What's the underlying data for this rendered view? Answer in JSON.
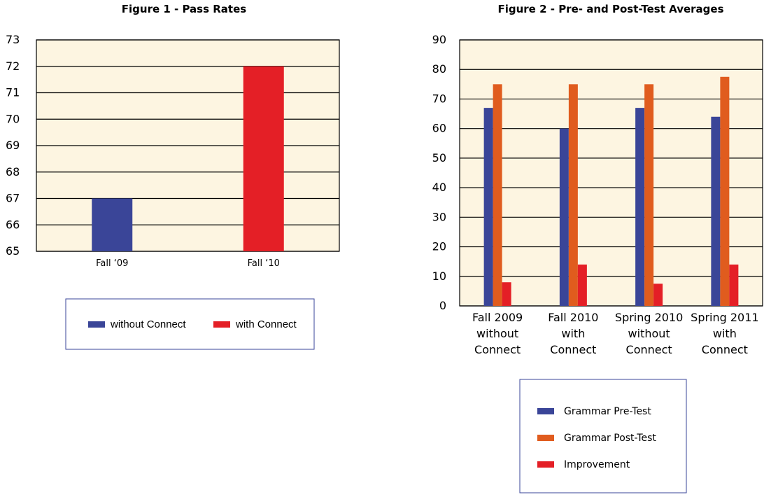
{
  "chart_data": [
    {
      "type": "bar",
      "title": "Figure 1 - Pass Rates",
      "xlabel": "",
      "ylabel": "",
      "ylim": [
        65,
        73
      ],
      "yticks": [
        65,
        66,
        67,
        68,
        69,
        70,
        71,
        72,
        73
      ],
      "grid": true,
      "background": "#fdf5e1",
      "categories": [
        "Fall ‘09",
        "Fall ‘10"
      ],
      "series": [
        {
          "name": "without Connect",
          "color": "#3a4598",
          "values": [
            67,
            null
          ]
        },
        {
          "name": "with Connect",
          "color": "#e41f26",
          "values": [
            null,
            72
          ]
        }
      ],
      "legend": "bottom"
    },
    {
      "type": "bar",
      "title": "Figure 2 - Pre- and Post-Test Averages",
      "xlabel": "",
      "ylabel": "",
      "ylim": [
        0,
        90
      ],
      "yticks": [
        0,
        10,
        20,
        30,
        40,
        50,
        60,
        70,
        80,
        90
      ],
      "grid": true,
      "background": "#fdf5e1",
      "categories": [
        [
          "Fall 2009",
          "without",
          "Connect"
        ],
        [
          "Fall 2010",
          "with",
          "Connect"
        ],
        [
          "Spring 2010",
          "without",
          "Connect"
        ],
        [
          "Spring 2011",
          "with",
          "Connect"
        ]
      ],
      "series": [
        {
          "name": "Grammar Pre-Test",
          "color": "#3a4598",
          "values": [
            67,
            60,
            67,
            64
          ]
        },
        {
          "name": "Grammar Post-Test",
          "color": "#e05c1e",
          "values": [
            75,
            75,
            75,
            77.5
          ]
        },
        {
          "name": "Improvement",
          "color": "#e41f26",
          "values": [
            8,
            14,
            7.5,
            14
          ]
        }
      ],
      "legend": "bottom"
    }
  ]
}
